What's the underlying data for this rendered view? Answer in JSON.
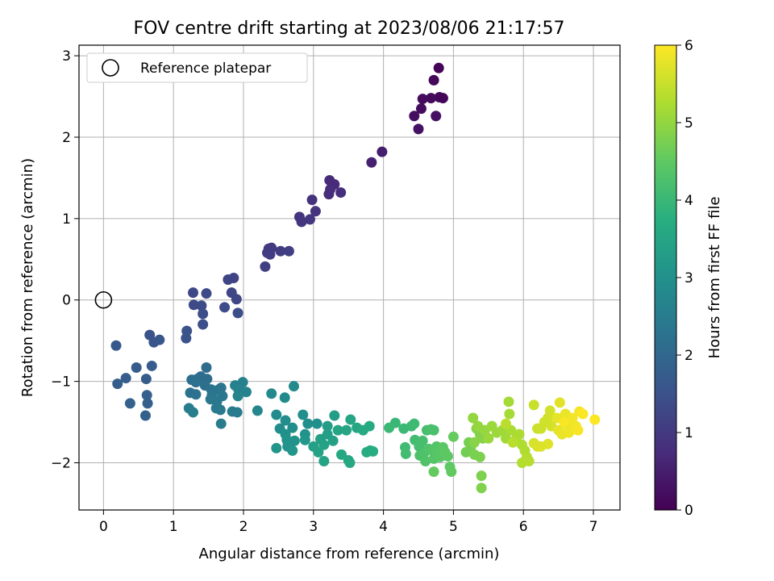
{
  "chart_data": {
    "type": "scatter",
    "title": "FOV centre drift starting at 2023/08/06 21:17:57",
    "xlabel": "Angular distance from reference (arcmin)",
    "ylabel": "Rotation from reference (arcmin)",
    "xlim": [
      -0.35,
      7.38
    ],
    "ylim": [
      -2.58,
      3.13
    ],
    "xticks": [
      0,
      1,
      2,
      3,
      4,
      5,
      6,
      7
    ],
    "yticks": [
      -2,
      -1,
      0,
      1,
      2,
      3
    ],
    "grid": true,
    "legend": {
      "placement": "top-left",
      "entries": [
        "Reference platepar"
      ]
    },
    "reference_point": {
      "x": 0,
      "y": 0
    },
    "colorbar": {
      "label": "Hours from first FF file",
      "colormap": "viridis",
      "range": [
        0,
        6
      ],
      "ticks": [
        0,
        1,
        2,
        3,
        4,
        5,
        6
      ]
    },
    "points": [
      [
        4.79,
        2.85,
        0.05
      ],
      [
        4.72,
        2.7,
        0.1
      ],
      [
        4.8,
        2.49,
        0.12
      ],
      [
        4.85,
        2.48,
        0.08
      ],
      [
        4.68,
        2.48,
        0.15
      ],
      [
        4.56,
        2.47,
        0.18
      ],
      [
        4.54,
        2.35,
        0.2
      ],
      [
        4.44,
        2.26,
        0.22
      ],
      [
        4.75,
        2.26,
        0.25
      ],
      [
        4.5,
        2.1,
        0.28
      ],
      [
        3.98,
        1.82,
        0.5
      ],
      [
        3.83,
        1.69,
        0.55
      ],
      [
        3.23,
        1.47,
        0.7
      ],
      [
        3.3,
        1.42,
        0.72
      ],
      [
        3.24,
        1.36,
        0.75
      ],
      [
        3.22,
        1.3,
        0.78
      ],
      [
        3.39,
        1.32,
        0.8
      ],
      [
        2.98,
        1.23,
        0.85
      ],
      [
        3.03,
        1.09,
        0.88
      ],
      [
        2.8,
        1.02,
        0.9
      ],
      [
        2.83,
        0.96,
        0.92
      ],
      [
        2.95,
        0.99,
        0.94
      ],
      [
        2.36,
        0.63,
        1.0
      ],
      [
        2.4,
        0.64,
        1.02
      ],
      [
        2.34,
        0.58,
        1.04
      ],
      [
        2.38,
        0.56,
        1.06
      ],
      [
        2.53,
        0.6,
        1.08
      ],
      [
        2.65,
        0.6,
        1.1
      ],
      [
        2.31,
        0.41,
        1.12
      ],
      [
        1.86,
        0.27,
        1.2
      ],
      [
        1.78,
        0.25,
        1.22
      ],
      [
        1.83,
        0.09,
        1.24
      ],
      [
        1.9,
        0.01,
        1.26
      ],
      [
        1.28,
        0.09,
        1.3
      ],
      [
        1.47,
        0.08,
        1.32
      ],
      [
        1.29,
        -0.06,
        1.34
      ],
      [
        1.4,
        -0.07,
        1.36
      ],
      [
        1.73,
        -0.09,
        1.38
      ],
      [
        1.42,
        -0.17,
        1.4
      ],
      [
        1.92,
        -0.16,
        1.42
      ],
      [
        1.42,
        -0.3,
        1.44
      ],
      [
        1.19,
        -0.38,
        1.5
      ],
      [
        1.18,
        -0.47,
        1.52
      ],
      [
        0.66,
        -0.43,
        1.55
      ],
      [
        0.72,
        -0.52,
        1.58
      ],
      [
        0.8,
        -0.49,
        1.6
      ],
      [
        0.18,
        -0.56,
        1.65
      ],
      [
        0.69,
        -0.81,
        1.7
      ],
      [
        0.47,
        -0.83,
        1.72
      ],
      [
        0.61,
        -0.97,
        1.74
      ],
      [
        0.32,
        -0.96,
        1.76
      ],
      [
        0.2,
        -1.03,
        1.78
      ],
      [
        0.62,
        -1.17,
        1.8
      ],
      [
        0.63,
        -1.27,
        1.82
      ],
      [
        0.6,
        -1.42,
        1.84
      ],
      [
        0.38,
        -1.27,
        1.86
      ],
      [
        1.47,
        -0.83,
        2.1
      ],
      [
        1.39,
        -0.94,
        2.12
      ],
      [
        1.48,
        -0.97,
        2.14
      ],
      [
        1.34,
        -0.97,
        2.16
      ],
      [
        1.26,
        -0.98,
        2.18
      ],
      [
        1.45,
        -1.05,
        2.2
      ],
      [
        1.32,
        -1.01,
        2.22
      ],
      [
        1.24,
        -1.14,
        2.24
      ],
      [
        1.32,
        -1.16,
        2.26
      ],
      [
        1.54,
        -1.1,
        2.28
      ],
      [
        1.65,
        -1.1,
        2.3
      ],
      [
        1.68,
        -1.08,
        2.32
      ],
      [
        1.55,
        -1.17,
        2.34
      ],
      [
        1.53,
        -1.22,
        2.36
      ],
      [
        1.62,
        -1.25,
        2.38
      ],
      [
        1.7,
        -1.18,
        2.4
      ],
      [
        1.61,
        -1.33,
        2.42
      ],
      [
        1.67,
        -1.35,
        2.44
      ],
      [
        1.84,
        -1.37,
        2.46
      ],
      [
        1.91,
        -1.38,
        2.48
      ],
      [
        1.68,
        -1.52,
        2.5
      ],
      [
        1.22,
        -1.33,
        2.52
      ],
      [
        1.28,
        -1.38,
        2.54
      ],
      [
        1.88,
        -1.05,
        2.6
      ],
      [
        1.99,
        -1.01,
        2.62
      ],
      [
        1.93,
        -1.1,
        2.64
      ],
      [
        2.04,
        -1.13,
        2.66
      ],
      [
        1.92,
        -1.18,
        2.68
      ],
      [
        2.2,
        -1.36,
        2.7
      ],
      [
        2.4,
        -1.15,
        2.8
      ],
      [
        2.72,
        -1.06,
        2.82
      ],
      [
        2.59,
        -1.2,
        2.84
      ],
      [
        2.47,
        -1.41,
        2.86
      ],
      [
        2.6,
        -1.48,
        2.88
      ],
      [
        2.52,
        -1.58,
        2.9
      ],
      [
        2.7,
        -1.57,
        2.92
      ],
      [
        2.85,
        -1.41,
        2.94
      ],
      [
        2.92,
        -1.52,
        2.96
      ],
      [
        3.05,
        -1.52,
        2.98
      ],
      [
        2.6,
        -1.65,
        3.0
      ],
      [
        2.88,
        -1.65,
        3.02
      ],
      [
        2.62,
        -1.72,
        3.04
      ],
      [
        2.73,
        -1.73,
        3.06
      ],
      [
        2.63,
        -1.8,
        3.08
      ],
      [
        2.47,
        -1.82,
        3.1
      ],
      [
        2.7,
        -1.85,
        3.12
      ],
      [
        2.88,
        -1.72,
        3.14
      ],
      [
        3.2,
        -1.55,
        3.3
      ],
      [
        3.3,
        -1.42,
        3.32
      ],
      [
        3.2,
        -1.65,
        3.34
      ],
      [
        3.1,
        -1.71,
        3.36
      ],
      [
        3.28,
        -1.73,
        3.38
      ],
      [
        3.0,
        -1.8,
        3.4
      ],
      [
        3.15,
        -1.78,
        3.42
      ],
      [
        3.07,
        -1.87,
        3.44
      ],
      [
        3.15,
        -1.98,
        3.46
      ],
      [
        3.35,
        -1.6,
        3.48
      ],
      [
        3.47,
        -1.6,
        3.5
      ],
      [
        3.53,
        -1.47,
        3.52
      ],
      [
        3.62,
        -1.57,
        3.54
      ],
      [
        3.4,
        -1.9,
        3.56
      ],
      [
        3.5,
        -1.97,
        3.58
      ],
      [
        3.52,
        -2.0,
        3.6
      ],
      [
        3.71,
        -1.6,
        3.62
      ],
      [
        3.8,
        -1.55,
        3.64
      ],
      [
        3.81,
        -1.85,
        3.66
      ],
      [
        3.76,
        -1.87,
        3.68
      ],
      [
        3.85,
        -1.86,
        3.7
      ],
      [
        4.17,
        -1.51,
        4.0
      ],
      [
        4.08,
        -1.57,
        4.02
      ],
      [
        4.29,
        -1.58,
        4.04
      ],
      [
        4.4,
        -1.55,
        4.06
      ],
      [
        4.44,
        -1.52,
        4.08
      ],
      [
        4.31,
        -1.81,
        4.1
      ],
      [
        4.32,
        -1.89,
        4.12
      ],
      [
        4.45,
        -1.72,
        4.14
      ],
      [
        4.51,
        -1.8,
        4.16
      ],
      [
        4.56,
        -1.73,
        4.18
      ],
      [
        4.62,
        -1.6,
        4.2
      ],
      [
        4.68,
        -1.59,
        4.22
      ],
      [
        4.72,
        -1.6,
        4.24
      ],
      [
        4.52,
        -1.91,
        4.26
      ],
      [
        4.58,
        -1.88,
        4.28
      ],
      [
        4.6,
        -1.98,
        4.3
      ],
      [
        4.65,
        -1.83,
        4.32
      ],
      [
        4.7,
        -1.85,
        4.34
      ],
      [
        4.76,
        -1.8,
        4.36
      ],
      [
        4.72,
        -1.95,
        4.38
      ],
      [
        4.78,
        -1.88,
        4.4
      ],
      [
        4.81,
        -1.93,
        4.42
      ],
      [
        4.85,
        -1.81,
        4.44
      ],
      [
        4.88,
        -1.87,
        4.46
      ],
      [
        4.92,
        -1.92,
        4.48
      ],
      [
        4.95,
        -2.05,
        4.5
      ],
      [
        4.97,
        -2.11,
        4.52
      ],
      [
        4.72,
        -2.11,
        4.54
      ],
      [
        5.0,
        -1.68,
        4.56
      ],
      [
        5.18,
        -1.87,
        4.7
      ],
      [
        5.22,
        -1.75,
        4.72
      ],
      [
        5.25,
        -1.8,
        4.74
      ],
      [
        5.3,
        -1.9,
        4.76
      ],
      [
        5.38,
        -1.93,
        4.78
      ],
      [
        5.4,
        -2.16,
        4.8
      ],
      [
        5.4,
        -2.31,
        4.82
      ],
      [
        5.33,
        -1.58,
        4.84
      ],
      [
        5.38,
        -1.65,
        4.86
      ],
      [
        5.42,
        -1.7,
        4.88
      ],
      [
        5.3,
        -1.75,
        4.9
      ],
      [
        5.28,
        -1.45,
        5.0
      ],
      [
        5.35,
        -1.55,
        5.02
      ],
      [
        5.45,
        -1.6,
        5.04
      ],
      [
        5.5,
        -1.7,
        5.06
      ],
      [
        5.55,
        -1.55,
        5.08
      ],
      [
        5.62,
        -1.63,
        5.1
      ],
      [
        5.7,
        -1.6,
        5.12
      ],
      [
        5.75,
        -1.7,
        5.14
      ],
      [
        5.79,
        -1.25,
        5.16
      ],
      [
        5.8,
        -1.4,
        5.18
      ],
      [
        5.82,
        -1.6,
        5.2
      ],
      [
        5.9,
        -1.7,
        5.22
      ],
      [
        5.94,
        -1.65,
        5.24
      ],
      [
        5.98,
        -1.78,
        5.26
      ],
      [
        6.02,
        -1.85,
        5.28
      ],
      [
        6.05,
        -1.93,
        5.3
      ],
      [
        5.98,
        -2.0,
        5.32
      ],
      [
        6.08,
        -1.98,
        5.34
      ],
      [
        5.85,
        -1.75,
        5.36
      ],
      [
        5.75,
        -1.52,
        5.38
      ],
      [
        6.15,
        -1.29,
        5.5
      ],
      [
        6.2,
        -1.58,
        5.52
      ],
      [
        6.25,
        -1.58,
        5.54
      ],
      [
        6.3,
        -1.5,
        5.56
      ],
      [
        6.35,
        -1.45,
        5.58
      ],
      [
        6.38,
        -1.36,
        5.6
      ],
      [
        6.4,
        -1.55,
        5.62
      ],
      [
        6.15,
        -1.76,
        5.64
      ],
      [
        6.2,
        -1.8,
        5.66
      ],
      [
        6.25,
        -1.8,
        5.68
      ],
      [
        6.35,
        -1.77,
        5.7
      ],
      [
        6.52,
        -1.26,
        5.75
      ],
      [
        6.48,
        -1.45,
        5.77
      ],
      [
        6.5,
        -1.6,
        5.79
      ],
      [
        6.55,
        -1.65,
        5.81
      ],
      [
        6.6,
        -1.4,
        5.83
      ],
      [
        6.62,
        -1.53,
        5.85
      ],
      [
        6.65,
        -1.63,
        5.87
      ],
      [
        6.7,
        -1.45,
        5.89
      ],
      [
        6.75,
        -1.55,
        5.91
      ],
      [
        6.8,
        -1.37,
        5.93
      ],
      [
        6.78,
        -1.6,
        5.95
      ],
      [
        6.85,
        -1.4,
        5.97
      ],
      [
        7.02,
        -1.47,
        5.99
      ],
      [
        6.58,
        -1.5,
        5.96
      ]
    ]
  }
}
